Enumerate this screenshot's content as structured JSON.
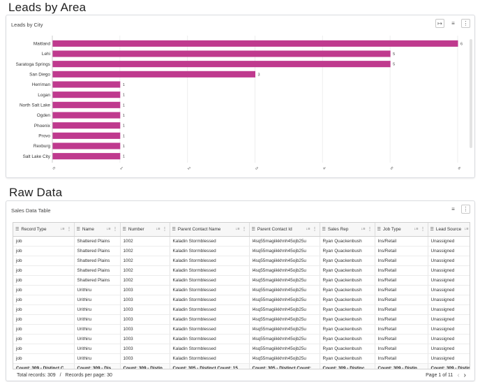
{
  "sections": {
    "leads_title": "Leads by Area",
    "raw_title": "Raw Data"
  },
  "chart_card": {
    "label": "Leads by City",
    "icons": [
      "fit-width-icon",
      "filter-icon",
      "more-vert-icon"
    ]
  },
  "chart_data": {
    "type": "bar",
    "orientation": "horizontal",
    "title": "",
    "categories": [
      "Maitland",
      "Lehi",
      "Saratoga Springs",
      "San Diego",
      "Herriman",
      "Logan",
      "North Salt Lake",
      "Ogden",
      "Phoenix",
      "Provo",
      "Rexburg",
      "Salt Lake City"
    ],
    "values": [
      6,
      5,
      5,
      3,
      1,
      1,
      1,
      1,
      1,
      1,
      1,
      1
    ],
    "xlim": [
      0,
      6
    ],
    "xticks": [
      "0",
      "1",
      "2",
      "3",
      "4",
      "5",
      "6"
    ],
    "color": "#bf3a8e",
    "grid": true
  },
  "table_card": {
    "label": "Sales Data Table",
    "icons": [
      "filter-icon",
      "more-vert-icon"
    ],
    "columns": [
      "Record Type",
      "Name",
      "Number",
      "Parent Contact Name",
      "Parent Contact Id",
      "Sales Rep",
      "Job Type",
      "Lead Source"
    ],
    "rows": [
      [
        "job",
        "Shattered Plains",
        "1002",
        "Kaladin Stormblessed",
        "l4sq55magiikkhnh45ojb25u",
        "Ryan Quackenbush",
        "Ins/Retail",
        "Unassigned"
      ],
      [
        "job",
        "Shattered Plains",
        "1002",
        "Kaladin Stormblessed",
        "l4sq55magiikkhnh45ojb25u",
        "Ryan Quackenbush",
        "Ins/Retail",
        "Unassigned"
      ],
      [
        "job",
        "Shattered Plains",
        "1002",
        "Kaladin Stormblessed",
        "l4sq55magiikkhnh45ojb25u",
        "Ryan Quackenbush",
        "Ins/Retail",
        "Unassigned"
      ],
      [
        "job",
        "Shattered Plains",
        "1002",
        "Kaladin Stormblessed",
        "l4sq55magiikkhnh45ojb25u",
        "Ryan Quackenbush",
        "Ins/Retail",
        "Unassigned"
      ],
      [
        "job",
        "Shattered Plains",
        "1002",
        "Kaladin Stormblessed",
        "l4sq55magiikkhnh45ojb25u",
        "Ryan Quackenbush",
        "Ins/Retail",
        "Unassigned"
      ],
      [
        "job",
        "Urithiru",
        "1003",
        "Kaladin Stormblessed",
        "l4sq55magiikkhnh45ojb25u",
        "Ryan Quackenbush",
        "Ins/Retail",
        "Unassigned"
      ],
      [
        "job",
        "Urithiru",
        "1003",
        "Kaladin Stormblessed",
        "l4sq55magiikkhnh45ojb25u",
        "Ryan Quackenbush",
        "Ins/Retail",
        "Unassigned"
      ],
      [
        "job",
        "Urithiru",
        "1003",
        "Kaladin Stormblessed",
        "l4sq55magiikkhnh45ojb25u",
        "Ryan Quackenbush",
        "Ins/Retail",
        "Unassigned"
      ],
      [
        "job",
        "Urithiru",
        "1003",
        "Kaladin Stormblessed",
        "l4sq55magiikkhnh45ojb25u",
        "Ryan Quackenbush",
        "Ins/Retail",
        "Unassigned"
      ],
      [
        "job",
        "Urithiru",
        "1003",
        "Kaladin Stormblessed",
        "l4sq55magiikkhnh45ojb25u",
        "Ryan Quackenbush",
        "Ins/Retail",
        "Unassigned"
      ],
      [
        "job",
        "Urithiru",
        "1003",
        "Kaladin Stormblessed",
        "l4sq55magiikkhnh45ojb25u",
        "Ryan Quackenbush",
        "Ins/Retail",
        "Unassigned"
      ],
      [
        "job",
        "Urithiru",
        "1003",
        "Kaladin Stormblessed",
        "l4sq55magiikkhnh45ojb25u",
        "Ryan Quackenbush",
        "Ins/Retail",
        "Unassigned"
      ],
      [
        "job",
        "Urithiru",
        "1003",
        "Kaladin Stormblessed",
        "l4sq55magiikkhnh45ojb25u",
        "Ryan Quackenbush",
        "Ins/Retail",
        "Unassigned"
      ]
    ],
    "footer": [
      "Count: 309 - Distinct C...",
      "Count: 309 - Disti...",
      "Count: 309 - Distin...",
      "Count: 305 - Distinct Count: 15",
      "Count: 305 - Distinct Count: 15",
      "Count: 309 - Distinc...",
      "Count: 309 - Distin...",
      "Count: 309 - Distinc"
    ],
    "status": {
      "total_label": "Total records:",
      "total": "309",
      "separator": "/",
      "per_page_label": "Records per page:",
      "per_page": "30"
    },
    "pager": {
      "text": "Page 1 of 11",
      "prev_icon": "chevron-left-icon",
      "next_icon": "chevron-right-icon"
    }
  }
}
